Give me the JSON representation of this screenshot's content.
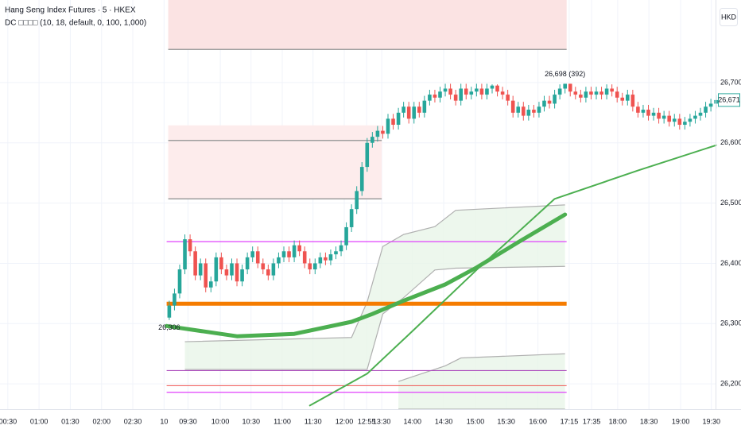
{
  "chart_data": {
    "type": "candlestick",
    "title": "Hang Seng Index Futures · 5 · HKEX",
    "subtitle": "DC □□□□ (10, 18, default, 0, 100, 1,000)",
    "currency": "HKD",
    "xlim": [
      -32.5,
      104.9
    ],
    "ylim": [
      26158,
      26837
    ],
    "grid": true,
    "up_color": "#26a69a",
    "down_color": "#ef5350",
    "xticks": [
      {
        "value": -31,
        "label": "00:30"
      },
      {
        "value": -25,
        "label": "01:00"
      },
      {
        "value": -19,
        "label": "01:30"
      },
      {
        "value": -13,
        "label": "02:00"
      },
      {
        "value": -7,
        "label": "02:30"
      },
      {
        "value": -1,
        "label": "10"
      },
      {
        "value": 3.6,
        "label": "09:30"
      },
      {
        "value": 9.8,
        "label": "10:00"
      },
      {
        "value": 15.7,
        "label": "10:30"
      },
      {
        "value": 21.7,
        "label": "11:00"
      },
      {
        "value": 27.6,
        "label": "11:30"
      },
      {
        "value": 33.6,
        "label": "12:00"
      },
      {
        "value": 37.9,
        "label": "12:55"
      },
      {
        "value": 40.8,
        "label": "13:30"
      },
      {
        "value": 46.7,
        "label": "14:00"
      },
      {
        "value": 52.7,
        "label": "14:30"
      },
      {
        "value": 58.8,
        "label": "15:00"
      },
      {
        "value": 64.7,
        "label": "15:30"
      },
      {
        "value": 70.8,
        "label": "16:00"
      },
      {
        "value": 76.8,
        "label": "17:15"
      },
      {
        "value": 81.1,
        "label": "17:35"
      },
      {
        "value": 86.1,
        "label": "18:00"
      },
      {
        "value": 92.1,
        "label": "18:30"
      },
      {
        "value": 98.2,
        "label": "19:00"
      },
      {
        "value": 104.1,
        "label": "19:30"
      }
    ],
    "yticks": [
      {
        "value": 26200,
        "label": "26,200"
      },
      {
        "value": 26300,
        "label": "26,300"
      },
      {
        "value": 26400,
        "label": "26,400"
      },
      {
        "value": 26500,
        "label": "26,500"
      },
      {
        "value": 26600,
        "label": "26,600"
      },
      {
        "value": 26700,
        "label": "26,700"
      }
    ],
    "candles": {
      "open": [
        26310,
        26330,
        26350,
        26390,
        26440,
        26420,
        26380,
        26400,
        26360,
        26370,
        26410,
        26390,
        26380,
        26400,
        26370,
        26390,
        26410,
        26420,
        26400,
        26390,
        26380,
        26400,
        26410,
        26420,
        26410,
        26430,
        26420,
        26400,
        26390,
        26400,
        26410,
        26405,
        26415,
        26420,
        26430,
        26460,
        26490,
        26520,
        26560,
        26600,
        26610,
        26620,
        26615,
        26640,
        26630,
        26650,
        26660,
        26640,
        26660,
        26650,
        26670,
        26680,
        26675,
        26685,
        26690,
        26680,
        26670,
        26690,
        26680,
        26685,
        26690,
        26680,
        26690,
        26695,
        26685,
        26680,
        26670,
        26650,
        26660,
        26645,
        26655,
        26650,
        26660,
        26670,
        26665,
        26680,
        26690,
        26698,
        26685,
        26680,
        26675,
        26685,
        26680,
        26685,
        26680,
        26690,
        26685,
        26675,
        26670,
        26680,
        26660,
        26650,
        26655,
        26645,
        26650,
        26640,
        26645,
        26635,
        26640,
        26630,
        26635,
        26640,
        26645,
        26650,
        26660,
        26665
      ],
      "high": [
        26338,
        26358,
        26398,
        26448,
        26448,
        26428,
        26408,
        26408,
        26378,
        26418,
        26418,
        26398,
        26408,
        26408,
        26398,
        26418,
        26428,
        26428,
        26408,
        26398,
        26408,
        26418,
        26428,
        26428,
        26438,
        26438,
        26428,
        26408,
        26408,
        26418,
        26418,
        26423,
        26428,
        26438,
        26468,
        26498,
        26528,
        26568,
        26608,
        26618,
        26628,
        26628,
        26648,
        26648,
        26658,
        26668,
        26668,
        26668,
        26668,
        26678,
        26688,
        26688,
        26693,
        26698,
        26698,
        26688,
        26698,
        26698,
        26693,
        26698,
        26698,
        26698,
        26697,
        26697,
        26693,
        26688,
        26678,
        26668,
        26668,
        26663,
        26663,
        26668,
        26678,
        26678,
        26688,
        26697,
        26698,
        26698,
        26693,
        26688,
        26693,
        26693,
        26693,
        26693,
        26697,
        26697,
        26693,
        26683,
        26688,
        26688,
        26668,
        26663,
        26663,
        26658,
        26658,
        26653,
        26653,
        26648,
        26648,
        26643,
        26648,
        26653,
        26658,
        26668,
        26673,
        26679
      ],
      "low": [
        26306,
        26322,
        26342,
        26382,
        26412,
        26372,
        26372,
        26352,
        26352,
        26362,
        26382,
        26372,
        26372,
        26362,
        26362,
        26382,
        26402,
        26392,
        26382,
        26372,
        26372,
        26392,
        26402,
        26402,
        26402,
        26412,
        26392,
        26382,
        26382,
        26392,
        26397,
        26397,
        26407,
        26412,
        26422,
        26452,
        26482,
        26512,
        26552,
        26592,
        26602,
        26607,
        26607,
        26622,
        26622,
        26642,
        26632,
        26632,
        26642,
        26642,
        26662,
        26667,
        26667,
        26677,
        26672,
        26662,
        26662,
        26672,
        26672,
        26677,
        26672,
        26672,
        26682,
        26677,
        26672,
        26662,
        26642,
        26642,
        26637,
        26637,
        26642,
        26642,
        26652,
        26657,
        26657,
        26672,
        26682,
        26677,
        26672,
        26667,
        26667,
        26672,
        26672,
        26672,
        26672,
        26677,
        26667,
        26662,
        26662,
        26652,
        26642,
        26642,
        26637,
        26637,
        26632,
        26632,
        26627,
        26627,
        26622,
        26622,
        26627,
        26632,
        26637,
        26642,
        26652,
        26657
      ],
      "close": [
        26330,
        26350,
        26390,
        26440,
        26420,
        26380,
        26400,
        26360,
        26370,
        26410,
        26390,
        26380,
        26400,
        26370,
        26390,
        26410,
        26420,
        26400,
        26390,
        26380,
        26400,
        26410,
        26420,
        26410,
        26430,
        26420,
        26400,
        26390,
        26400,
        26410,
        26405,
        26415,
        26420,
        26430,
        26460,
        26490,
        26520,
        26560,
        26600,
        26610,
        26620,
        26615,
        26640,
        26630,
        26650,
        26660,
        26640,
        26660,
        26650,
        26670,
        26680,
        26675,
        26685,
        26690,
        26680,
        26670,
        26690,
        26680,
        26685,
        26690,
        26680,
        26690,
        26695,
        26685,
        26680,
        26670,
        26650,
        26660,
        26645,
        26655,
        26650,
        26660,
        26670,
        26665,
        26680,
        26690,
        26698,
        26685,
        26680,
        26675,
        26685,
        26680,
        26685,
        26680,
        26690,
        26685,
        26675,
        26670,
        26680,
        26660,
        26650,
        26655,
        26645,
        26650,
        26640,
        26645,
        26635,
        26640,
        26630,
        26635,
        26640,
        26645,
        26650,
        26660,
        26665,
        26671
      ]
    },
    "zones": [
      {
        "color": "#fbe3e3",
        "x": [
          -0.2,
          76.3
        ],
        "top": 26837,
        "bottom": 26755
      },
      {
        "color": "#fdecec",
        "x": [
          -0.2,
          40.8
        ],
        "top": 26629,
        "bottom": 26507
      }
    ],
    "bands": [
      {
        "color": "#e8f5e9",
        "edge": "#b0b0b0",
        "x": [
          3,
          35,
          38,
          41,
          45,
          51,
          55,
          76
        ],
        "upper": [
          26270,
          26277,
          26336,
          26428,
          26448,
          26461,
          26488,
          26497
        ],
        "lower": [
          26224,
          26224,
          26224,
          26316,
          26343,
          26389,
          26392,
          26395
        ]
      },
      {
        "color": "#e8f5e9",
        "edge": "#b0b0b0",
        "x": [
          44,
          53,
          56,
          76
        ],
        "upper": [
          26204,
          26230,
          26243,
          26250
        ],
        "lower": [
          26158,
          26158,
          26158,
          26158
        ]
      }
    ],
    "hlines": [
      {
        "color": "#9e9e9e",
        "width": 1.5,
        "value": 26755,
        "x": [
          -0.2,
          76.3
        ]
      },
      {
        "color": "#9e9e9e",
        "width": 1.5,
        "value": 26604,
        "x": [
          -0.2,
          40.8
        ]
      },
      {
        "color": "#9e9e9e",
        "width": 1.5,
        "value": 26507,
        "x": [
          -0.2,
          40.8
        ]
      },
      {
        "color": "#e040fb",
        "width": 1.2,
        "value": 26436,
        "x": [
          -0.5,
          76.3
        ]
      },
      {
        "color": "#f57c00",
        "width": 5,
        "value": 26333,
        "x": [
          -0.5,
          76.3
        ]
      },
      {
        "color": "#ab47bc",
        "width": 1.2,
        "value": 26222,
        "x": [
          -0.5,
          76.3
        ]
      },
      {
        "color": "#ef5350",
        "width": 1,
        "value": 26197,
        "x": [
          -0.5,
          76.3
        ]
      },
      {
        "color": "#e040fb",
        "width": 1.2,
        "value": 26186,
        "x": [
          -0.5,
          76.3
        ]
      }
    ],
    "lines": [
      {
        "color": "#4caf50",
        "width": 5,
        "x": [
          -0.5,
          13,
          24,
          35,
          39,
          45,
          53,
          59,
          67,
          76
        ],
        "values": [
          26296,
          26279,
          26283,
          26303,
          26316,
          26338,
          26365,
          26393,
          26435,
          26481
        ]
      },
      {
        "color": "#4caf50",
        "width": 2,
        "x": [
          27,
          38,
          47,
          59,
          74,
          90,
          105
        ],
        "values": [
          26164,
          26217,
          26290,
          26389,
          26507,
          26554,
          26596
        ]
      }
    ],
    "annotations": [
      {
        "x": 0,
        "value": 26306,
        "label": "26,306",
        "color": "#ef5350"
      },
      {
        "x": 76,
        "value": 26698,
        "label": "26,698 (392)",
        "color": "#4caf50"
      }
    ],
    "last_price": {
      "value": 26671,
      "label": "26,671",
      "color": "#26a69a"
    }
  }
}
